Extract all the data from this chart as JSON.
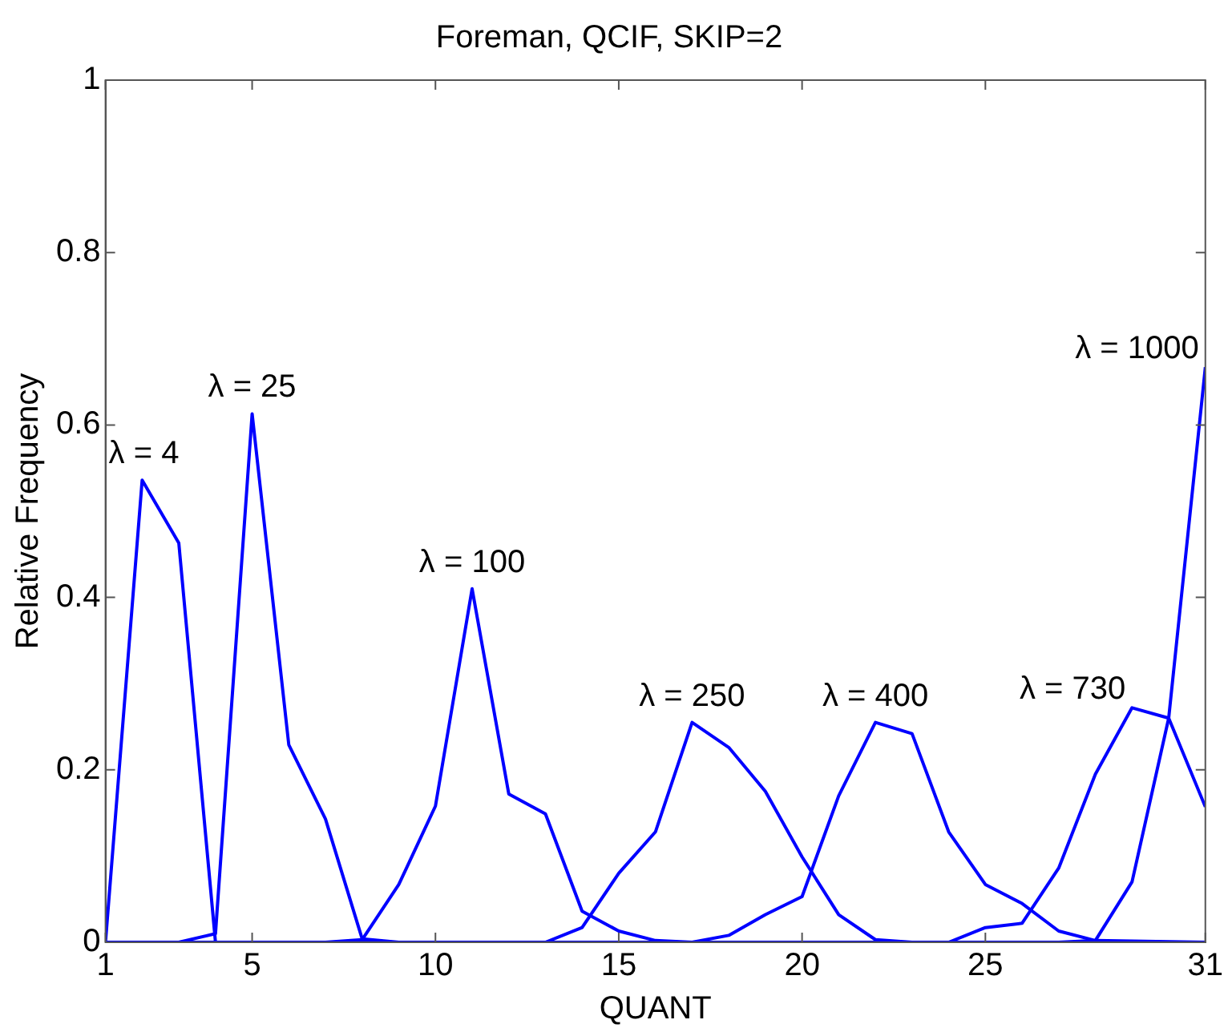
{
  "chart_data": {
    "type": "line",
    "title": "Foreman, QCIF, SKIP=2",
    "xlabel": "QUANT",
    "ylabel": "Relative Frequency",
    "xlim": [
      1,
      31
    ],
    "xticks": [
      1,
      5,
      10,
      15,
      20,
      25,
      31
    ],
    "ylim": [
      0,
      1
    ],
    "yticks": [
      0,
      0.2,
      0.4,
      0.6,
      0.8,
      1
    ],
    "grid": false,
    "legend": false,
    "marker": "none",
    "line_style": "solid",
    "series": [
      {
        "name": "λ = 4",
        "color": "#0000ff",
        "x": [
          1,
          2,
          3,
          4,
          5,
          31
        ],
        "values": [
          0,
          0.536,
          0.463,
          0,
          0,
          0
        ]
      },
      {
        "name": "λ = 25",
        "color": "#0000ff",
        "x": [
          1,
          3,
          4,
          5,
          6,
          7,
          8,
          9,
          31
        ],
        "values": [
          0,
          0,
          0.01,
          0.613,
          0.229,
          0.143,
          0.004,
          0,
          0
        ]
      },
      {
        "name": "λ = 100",
        "color": "#0000ff",
        "x": [
          1,
          7,
          8,
          9,
          10,
          11,
          12,
          13,
          14,
          15,
          16,
          17,
          31
        ],
        "values": [
          0,
          0,
          0.003,
          0.067,
          0.158,
          0.41,
          0.172,
          0.149,
          0.036,
          0.013,
          0.002,
          0,
          0
        ]
      },
      {
        "name": "λ = 250",
        "color": "#0000ff",
        "x": [
          1,
          13,
          14,
          15,
          16,
          17,
          18,
          19,
          20,
          21,
          22,
          23,
          31
        ],
        "values": [
          0,
          0,
          0.017,
          0.08,
          0.128,
          0.255,
          0.226,
          0.175,
          0.099,
          0.032,
          0.003,
          0,
          0
        ]
      },
      {
        "name": "λ = 400",
        "color": "#0000ff",
        "x": [
          1,
          17,
          18,
          19,
          20,
          21,
          22,
          23,
          24,
          25,
          26,
          27,
          28,
          31
        ],
        "values": [
          0,
          0,
          0.008,
          0.032,
          0.053,
          0.17,
          0.255,
          0.242,
          0.128,
          0.067,
          0.045,
          0.013,
          0.002,
          0
        ]
      },
      {
        "name": "λ = 730",
        "color": "#0000ff",
        "x": [
          1,
          24,
          25,
          26,
          27,
          28,
          29,
          30,
          31
        ],
        "values": [
          0,
          0,
          0.017,
          0.022,
          0.086,
          0.195,
          0.272,
          0.26,
          0.157
        ]
      },
      {
        "name": "λ = 1000",
        "color": "#0000ff",
        "x": [
          1,
          27,
          28,
          29,
          30,
          31
        ],
        "values": [
          0,
          0,
          0.002,
          0.07,
          0.26,
          0.667
        ]
      }
    ]
  }
}
